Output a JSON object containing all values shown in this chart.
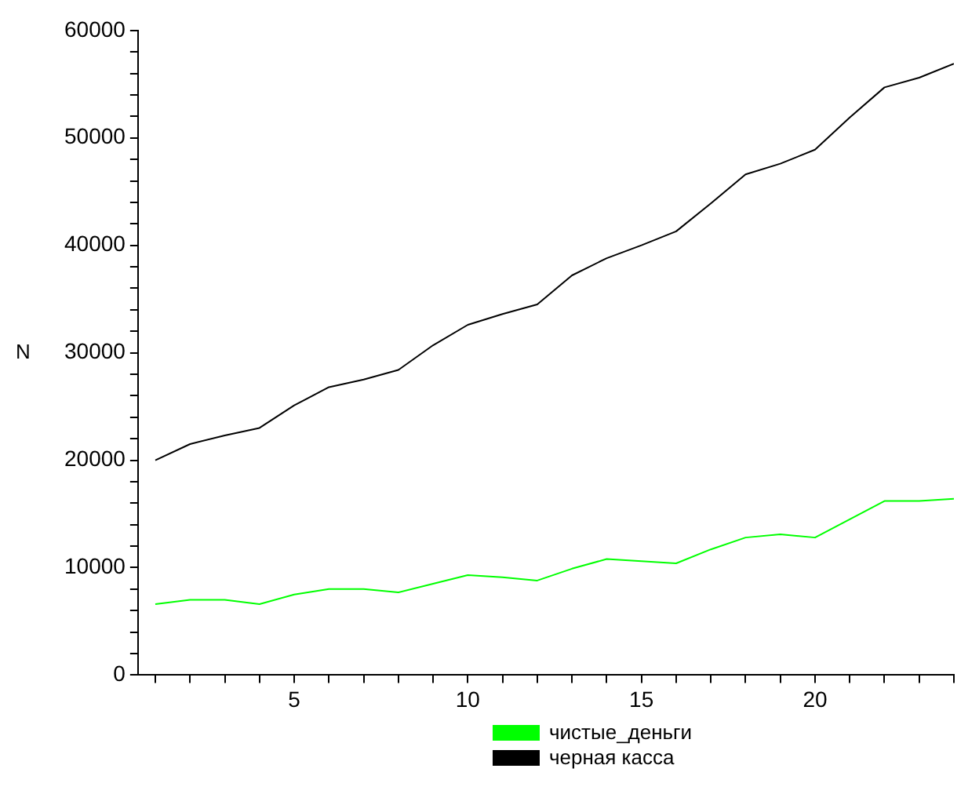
{
  "chart_data": {
    "type": "line",
    "ylabel": "N",
    "x": [
      1,
      2,
      3,
      4,
      5,
      6,
      7,
      8,
      9,
      10,
      11,
      12,
      13,
      14,
      15,
      16,
      17,
      18,
      19,
      20,
      21,
      22,
      23,
      24
    ],
    "series": [
      {
        "name": "чистые_деньги",
        "color": "#00ff00",
        "values": [
          6600,
          7000,
          7000,
          6600,
          7500,
          8000,
          8000,
          7700,
          8500,
          9300,
          9100,
          8800,
          9900,
          10800,
          10600,
          10400,
          11700,
          12800,
          13100,
          12800,
          14500,
          16200,
          16200,
          16400
        ]
      },
      {
        "name": "черная касса",
        "color": "#000000",
        "values": [
          20000,
          21500,
          22300,
          23000,
          25100,
          26800,
          27500,
          28400,
          30700,
          32600,
          33600,
          34500,
          37200,
          38800,
          40000,
          41300,
          43900,
          46600,
          47600,
          48900,
          51900,
          54700,
          55600,
          56900
        ]
      }
    ],
    "xlim": [
      0.5,
      24
    ],
    "xticks": [
      {
        "value": 1,
        "label": null
      },
      {
        "value": 2,
        "label": null
      },
      {
        "value": 3,
        "label": null
      },
      {
        "value": 4,
        "label": null
      },
      5,
      {
        "value": 6,
        "label": null
      },
      {
        "value": 7,
        "label": null
      },
      {
        "value": 8,
        "label": null
      },
      {
        "value": 9,
        "label": null
      },
      10,
      {
        "value": 11,
        "label": null
      },
      {
        "value": 12,
        "label": null
      },
      {
        "value": 13,
        "label": null
      },
      {
        "value": 14,
        "label": null
      },
      15,
      {
        "value": 16,
        "label": null
      },
      {
        "value": 17,
        "label": null
      },
      {
        "value": 18,
        "label": null
      },
      {
        "value": 19,
        "label": null
      },
      20,
      {
        "value": 21,
        "label": null
      },
      {
        "value": 22,
        "label": null
      },
      {
        "value": 23,
        "label": null
      },
      {
        "value": 24,
        "label": null
      }
    ],
    "ylim": [
      0,
      60000
    ],
    "yticks": [
      0,
      {
        "value": 2000,
        "label": null
      },
      {
        "value": 4000,
        "label": null
      },
      {
        "value": 6000,
        "label": null
      },
      {
        "value": 8000,
        "label": null
      },
      10000,
      {
        "value": 12000,
        "label": null
      },
      {
        "value": 14000,
        "label": null
      },
      {
        "value": 16000,
        "label": null
      },
      {
        "value": 18000,
        "label": null
      },
      20000,
      {
        "value": 22000,
        "label": null
      },
      {
        "value": 24000,
        "label": null
      },
      {
        "value": 26000,
        "label": null
      },
      {
        "value": 28000,
        "label": null
      },
      30000,
      {
        "value": 32000,
        "label": null
      },
      {
        "value": 34000,
        "label": null
      },
      {
        "value": 36000,
        "label": null
      },
      {
        "value": 38000,
        "label": null
      },
      40000,
      {
        "value": 42000,
        "label": null
      },
      {
        "value": 44000,
        "label": null
      },
      {
        "value": 46000,
        "label": null
      },
      {
        "value": 48000,
        "label": null
      },
      50000,
      {
        "value": 52000,
        "label": null
      },
      {
        "value": 54000,
        "label": null
      },
      {
        "value": 56000,
        "label": null
      },
      {
        "value": 58000,
        "label": null
      },
      60000
    ],
    "grid": false,
    "legend": "bottom",
    "marker": "none",
    "line_style": "solid"
  }
}
